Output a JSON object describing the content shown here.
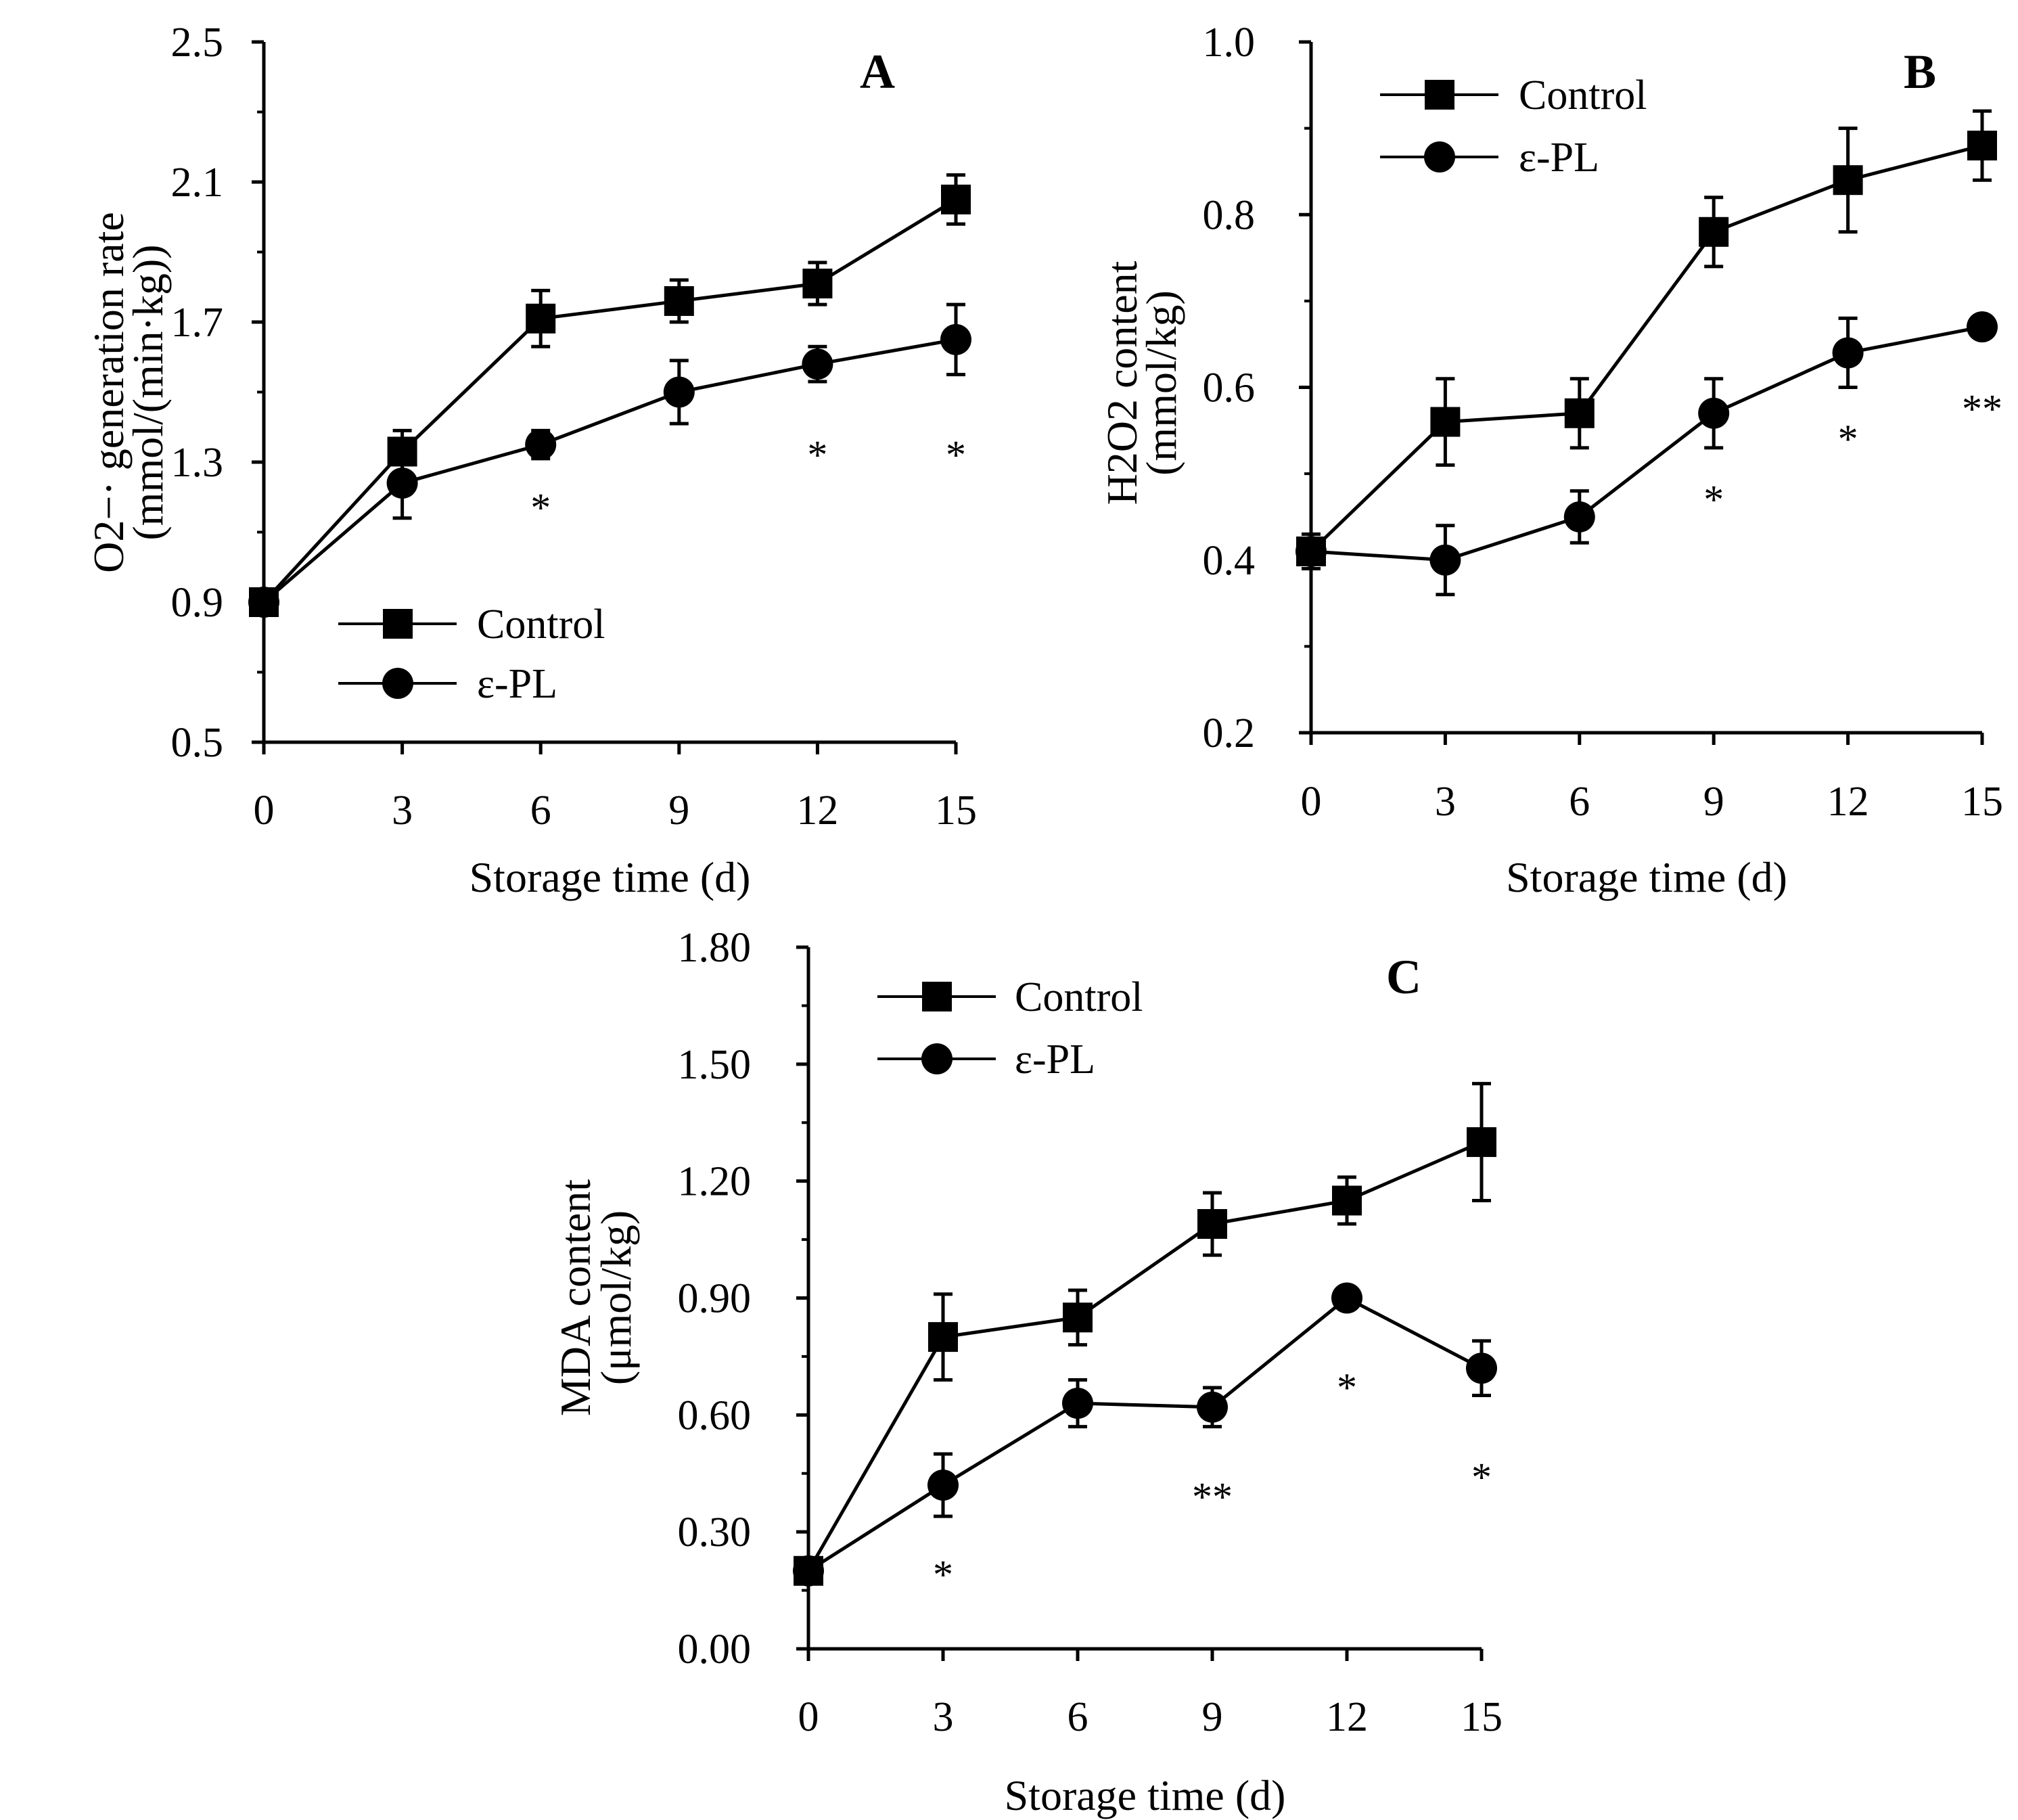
{
  "chart_data": [
    {
      "type": "line",
      "panel_label": "A",
      "ylabel_line1": "O2−· generation rate",
      "ylabel_line2": "(mmol/(min·kg))",
      "xlabel": "Storage time (d)",
      "x": [
        0,
        3,
        6,
        9,
        12,
        15
      ],
      "xlim": [
        0,
        15
      ],
      "ylim": [
        0.5,
        2.5
      ],
      "yticks": [
        "0.5",
        "0.9",
        "1.3",
        "1.7",
        "2.1",
        "2.5"
      ],
      "xticks": [
        "0",
        "3",
        "6",
        "9",
        "12",
        "15"
      ],
      "legend": [
        "Control",
        "ε-PL"
      ],
      "series": [
        {
          "name": "Control",
          "marker": "square",
          "values": [
            0.9,
            1.33,
            1.71,
            1.76,
            1.81,
            2.05
          ],
          "errors": [
            0,
            0.06,
            0.08,
            0.06,
            0.06,
            0.07
          ]
        },
        {
          "name": "ε-PL",
          "marker": "circle",
          "values": [
            0.9,
            1.24,
            1.35,
            1.5,
            1.58,
            1.65
          ],
          "errors": [
            0,
            0.1,
            0.04,
            0.09,
            0.05,
            0.1
          ]
        }
      ],
      "annotations": [
        {
          "x": 6,
          "y": 1.17,
          "text": "*"
        },
        {
          "x": 12,
          "y": 1.32,
          "text": "*"
        },
        {
          "x": 15,
          "y": 1.32,
          "text": "*"
        }
      ]
    },
    {
      "type": "line",
      "panel_label": "B",
      "ylabel_line1": "H2O2 content",
      "ylabel_line2": "(mmol/kg)",
      "xlabel": "Storage time (d)",
      "x": [
        0,
        3,
        6,
        9,
        12,
        15
      ],
      "xlim": [
        0,
        15
      ],
      "ylim": [
        0.2,
        1.0
      ],
      "yticks": [
        "0.2",
        "0.4",
        "0.6",
        "0.8",
        "1.0"
      ],
      "xticks": [
        "0",
        "3",
        "6",
        "9",
        "12",
        "15"
      ],
      "legend": [
        "Control",
        "ε-PL"
      ],
      "series": [
        {
          "name": "Control",
          "marker": "square",
          "values": [
            0.41,
            0.56,
            0.57,
            0.78,
            0.84,
            0.88
          ],
          "errors": [
            0.02,
            0.05,
            0.04,
            0.04,
            0.06,
            0.04
          ]
        },
        {
          "name": "ε-PL",
          "marker": "circle",
          "values": [
            0.41,
            0.4,
            0.45,
            0.57,
            0.64,
            0.67
          ],
          "errors": [
            0.02,
            0.04,
            0.03,
            0.04,
            0.04,
            0.0
          ]
        }
      ],
      "annotations": [
        {
          "x": 9,
          "y": 0.47,
          "text": "*"
        },
        {
          "x": 12,
          "y": 0.54,
          "text": "*"
        },
        {
          "x": 15,
          "y": 0.575,
          "text": "**"
        }
      ]
    },
    {
      "type": "line",
      "panel_label": "C",
      "ylabel_line1": "MDA content",
      "ylabel_line2": "(μmol/kg)",
      "xlabel": "Storage time (d)",
      "x": [
        0,
        3,
        6,
        9,
        12,
        15
      ],
      "xlim": [
        0,
        15
      ],
      "ylim": [
        0.0,
        1.8
      ],
      "yticks": [
        "0.00",
        "0.30",
        "0.60",
        "0.90",
        "1.20",
        "1.50",
        "1.80"
      ],
      "xticks": [
        "0",
        "3",
        "6",
        "9",
        "12",
        "15"
      ],
      "legend": [
        "Control",
        "ε-PL"
      ],
      "series": [
        {
          "name": "Control",
          "marker": "square",
          "values": [
            0.2,
            0.8,
            0.85,
            1.09,
            1.15,
            1.3
          ],
          "errors": [
            0,
            0.11,
            0.07,
            0.08,
            0.06,
            0.15
          ]
        },
        {
          "name": "ε-PL",
          "marker": "circle",
          "values": [
            0.2,
            0.42,
            0.63,
            0.62,
            0.9,
            0.72
          ],
          "errors": [
            0,
            0.08,
            0.06,
            0.05,
            0,
            0.07
          ]
        }
      ],
      "annotations": [
        {
          "x": 3,
          "y": 0.19,
          "text": "*"
        },
        {
          "x": 9,
          "y": 0.39,
          "text": "**"
        },
        {
          "x": 12,
          "y": 0.67,
          "text": "*"
        },
        {
          "x": 15,
          "y": 0.44,
          "text": "*"
        }
      ]
    }
  ]
}
